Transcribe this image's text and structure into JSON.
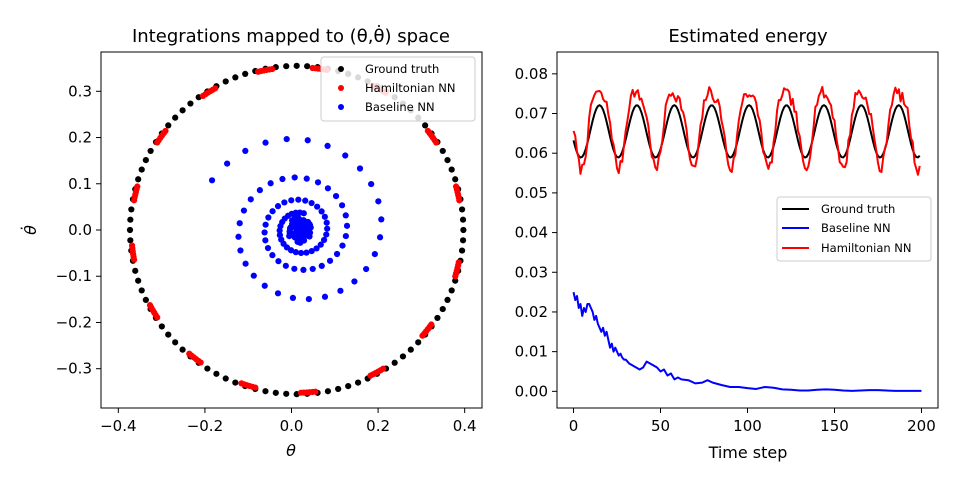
{
  "chart_data": [
    {
      "type": "scatter",
      "title": "Integrations mapped to (θ,θ̇) space",
      "xlabel": "θ",
      "ylabel": "θ̇",
      "xlim": [
        -0.44,
        0.44
      ],
      "ylim": [
        -0.385,
        0.385
      ],
      "xticks": [
        -0.4,
        -0.2,
        0.0,
        0.2,
        0.4
      ],
      "xtick_labels": [
        "−0.4",
        "−0.2",
        "0.0",
        "0.2",
        "0.4"
      ],
      "yticks": [
        -0.3,
        -0.2,
        -0.1,
        0.0,
        0.1,
        0.2,
        0.3
      ],
      "ytick_labels": [
        "−0.3",
        "−0.2",
        "−0.1",
        "0.0",
        "0.1",
        "0.2",
        "0.3"
      ],
      "grid": false,
      "legend_position": "upper right",
      "series": [
        {
          "name": "Ground truth",
          "color": "#000000",
          "generator": {
            "kind": "circle",
            "center": [
              0.012,
              0.0
            ],
            "radius_x": 0.385,
            "radius_y": 0.355,
            "count": 100
          }
        },
        {
          "name": "Hamiltonian NN",
          "color": "#ff0000",
          "generator": {
            "kind": "arc-clusters",
            "center": [
              0.012,
              0.0
            ],
            "radius_x": 0.382,
            "radius_y": 0.352,
            "angles_deg": [
              82,
              60,
              35,
              13,
              -14,
              -38,
              -61,
              -86,
              -107,
              -128,
              -150,
              -172,
              167,
              145,
              122,
              101
            ],
            "per_cluster": 6,
            "spread_deg": 6
          }
        },
        {
          "name": "Baseline NN",
          "color": "#0000ff",
          "generator": {
            "kind": "spiral",
            "center": [
              0.02,
              0.0
            ],
            "r_start_x": 0.235,
            "r_start_y": 0.215,
            "start_angle_deg": 150,
            "turns": 3.2,
            "count": 90,
            "decay": 0.55,
            "core_points": 70,
            "core_radius": 0.03
          }
        }
      ]
    },
    {
      "type": "line",
      "title": "Estimated energy",
      "xlabel": "Time step",
      "ylabel": "",
      "xlim": [
        -9.5,
        209.5
      ],
      "ylim": [
        -0.0042,
        0.0855
      ],
      "xticks": [
        0,
        50,
        100,
        150,
        200
      ],
      "xtick_labels": [
        "0",
        "50",
        "100",
        "150",
        "200"
      ],
      "yticks": [
        0.0,
        0.01,
        0.02,
        0.03,
        0.04,
        0.05,
        0.06,
        0.07,
        0.08
      ],
      "ytick_labels": [
        "0.00",
        "0.01",
        "0.02",
        "0.03",
        "0.04",
        "0.05",
        "0.06",
        "0.07",
        "0.08"
      ],
      "grid": false,
      "legend_position": "center right",
      "series": [
        {
          "name": "Ground truth",
          "color": "#000000",
          "generator": {
            "kind": "sine",
            "mean": 0.0655,
            "amplitude": 0.0066,
            "period": 21.5,
            "phase_deg": 200,
            "n": 200
          }
        },
        {
          "name": "Baseline NN",
          "color": "#0000ff",
          "points": [
            [
              0,
              0.025
            ],
            [
              1,
              0.023
            ],
            [
              2,
              0.024
            ],
            [
              3,
              0.021
            ],
            [
              4,
              0.022
            ],
            [
              5,
              0.019
            ],
            [
              6,
              0.021
            ],
            [
              7,
              0.02
            ],
            [
              8,
              0.022
            ],
            [
              9,
              0.022
            ],
            [
              10,
              0.021
            ],
            [
              11,
              0.02
            ],
            [
              12,
              0.018
            ],
            [
              13,
              0.019
            ],
            [
              14,
              0.017
            ],
            [
              15,
              0.016
            ],
            [
              16,
              0.015
            ],
            [
              17,
              0.016
            ],
            [
              18,
              0.014
            ],
            [
              19,
              0.015
            ],
            [
              20,
              0.013
            ],
            [
              21,
              0.011
            ],
            [
              22,
              0.012
            ],
            [
              23,
              0.01
            ],
            [
              24,
              0.011
            ],
            [
              25,
              0.01
            ],
            [
              26,
              0.009
            ],
            [
              27,
              0.0095
            ],
            [
              28,
              0.0085
            ],
            [
              29,
              0.008
            ],
            [
              30,
              0.008
            ],
            [
              32,
              0.007
            ],
            [
              34,
              0.0065
            ],
            [
              36,
              0.006
            ],
            [
              38,
              0.0055
            ],
            [
              40,
              0.006
            ],
            [
              42,
              0.0075
            ],
            [
              44,
              0.007
            ],
            [
              46,
              0.0065
            ],
            [
              48,
              0.006
            ],
            [
              50,
              0.005
            ],
            [
              52,
              0.0055
            ],
            [
              54,
              0.004
            ],
            [
              56,
              0.0045
            ],
            [
              58,
              0.003
            ],
            [
              60,
              0.0035
            ],
            [
              62,
              0.003
            ],
            [
              66,
              0.0028
            ],
            [
              70,
              0.002
            ],
            [
              74,
              0.0022
            ],
            [
              77,
              0.0028
            ],
            [
              80,
              0.0022
            ],
            [
              85,
              0.0016
            ],
            [
              90,
              0.0011
            ],
            [
              95,
              0.0011
            ],
            [
              100,
              0.0008
            ],
            [
              105,
              0.0006
            ],
            [
              110,
              0.0011
            ],
            [
              115,
              0.0009
            ],
            [
              120,
              0.0005
            ],
            [
              125,
              0.0004
            ],
            [
              130,
              0.0002
            ],
            [
              135,
              0.0002
            ],
            [
              140,
              0.0004
            ],
            [
              145,
              0.0005
            ],
            [
              150,
              0.0004
            ],
            [
              155,
              0.0002
            ],
            [
              160,
              0.0001
            ],
            [
              165,
              0.0002
            ],
            [
              170,
              0.0003
            ],
            [
              175,
              0.0003
            ],
            [
              180,
              0.0002
            ],
            [
              185,
              0.0001
            ],
            [
              190,
              0.0001
            ],
            [
              195,
              0.0001
            ],
            [
              200,
              0.0001
            ]
          ]
        },
        {
          "name": "Hamiltonian NN",
          "color": "#ff0000",
          "generator": {
            "kind": "sine-harmonic",
            "mean": 0.0675,
            "amplitude": 0.0095,
            "amp2": 0.0022,
            "period": 21.5,
            "phase_deg": 200,
            "noise": 0.0014,
            "n": 200,
            "seed": 7
          }
        }
      ]
    }
  ]
}
